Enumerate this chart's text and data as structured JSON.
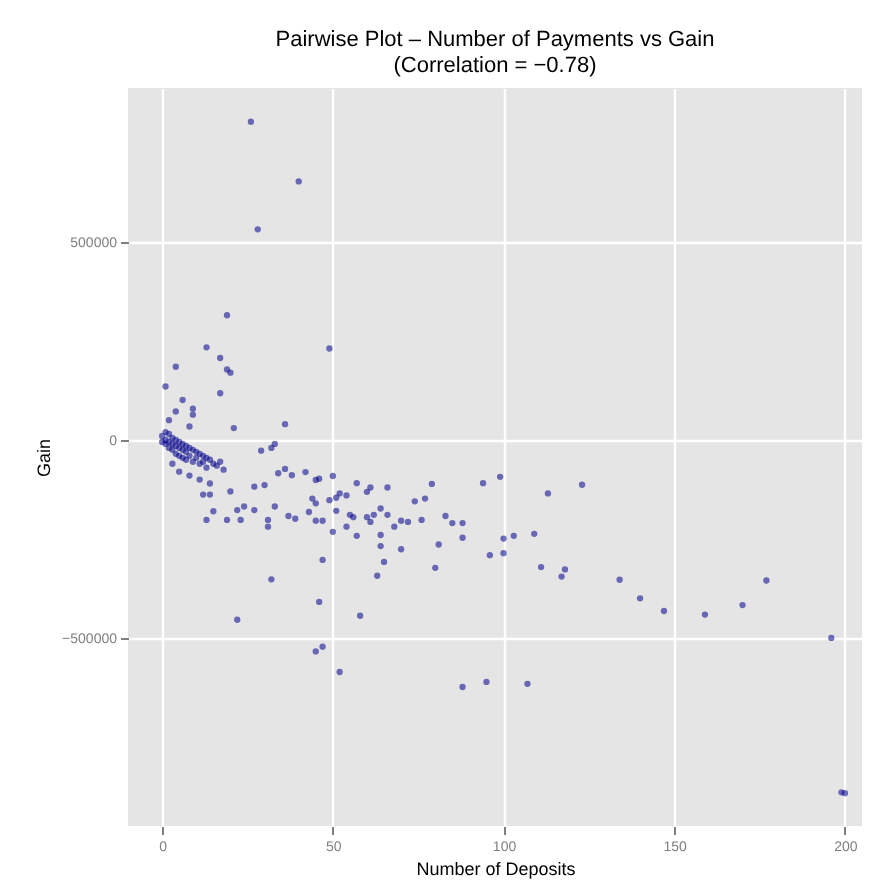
{
  "chart_data": {
    "type": "scatter",
    "title": "Pairwise Plot – Number of Payments vs Gain\n(Correlation = −0.78)",
    "xlabel": "Number of Deposits",
    "ylabel": "Gain",
    "xlim": [
      -10,
      205
    ],
    "ylim": [
      -975000,
      889000
    ],
    "xticks": [
      0,
      50,
      100,
      150,
      200
    ],
    "yticks": [
      -500000,
      0,
      500000
    ],
    "grid": true,
    "marker": "circle",
    "series": [
      {
        "color": "#00008b",
        "x": [
          26,
          40,
          28,
          19,
          49,
          13,
          17,
          19,
          20,
          4,
          1,
          17,
          6,
          9,
          9,
          4,
          36,
          21,
          8,
          2,
          0,
          0,
          1,
          1,
          1,
          2,
          2,
          2,
          3,
          3,
          3,
          4,
          4,
          4,
          5,
          5,
          5,
          6,
          6,
          6,
          7,
          7,
          7,
          8,
          8,
          9,
          9,
          10,
          10,
          11,
          11,
          12,
          12,
          13,
          13,
          14,
          15,
          16,
          17,
          18,
          3,
          5,
          8,
          11,
          14,
          29,
          32,
          33,
          50,
          79,
          66,
          61,
          60,
          45,
          42,
          46,
          38,
          36,
          34,
          30,
          57,
          52,
          51,
          49,
          44,
          45,
          54,
          77,
          74,
          64,
          66,
          55,
          62,
          60,
          76,
          72,
          70,
          68,
          61,
          56,
          54,
          50,
          47,
          45,
          43,
          51,
          39,
          37,
          31,
          31,
          33,
          24,
          27,
          23,
          19,
          13,
          14,
          12,
          15,
          22,
          20,
          27,
          57,
          64,
          64,
          70,
          81,
          88,
          88,
          83,
          80,
          65,
          63,
          47,
          32,
          46,
          58,
          22,
          45,
          47,
          52,
          88,
          94,
          99,
          113,
          123,
          100,
          103,
          109,
          96,
          100,
          111,
          117,
          118,
          134,
          140,
          147,
          159,
          170,
          177,
          196,
          95,
          107,
          199,
          200,
          85
        ],
        "values": [
          804000,
          653000,
          532000,
          315000,
          231000,
          234000,
          207000,
          178000,
          170000,
          185000,
          135000,
          118000,
          101000,
          79000,
          64000,
          72000,
          40000,
          30000,
          34000,
          50000,
          10000,
          -5000,
          20000,
          0,
          -10000,
          15000,
          -5000,
          -20000,
          5000,
          -10000,
          -25000,
          0,
          -15000,
          -35000,
          -5000,
          -20000,
          -40000,
          -10000,
          -25000,
          -45000,
          -15000,
          -30000,
          -50000,
          -20000,
          -40000,
          -25000,
          -55000,
          -30000,
          -45000,
          -35000,
          -60000,
          -40000,
          -55000,
          -45000,
          -70000,
          -50000,
          -60000,
          -65000,
          -55000,
          -75000,
          -60000,
          -80000,
          -90000,
          -100000,
          -110000,
          -27000,
          -20000,
          -10000,
          -91000,
          -111000,
          -120000,
          -120000,
          -131000,
          -101000,
          -81000,
          -98000,
          -89000,
          -73000,
          -84000,
          -114000,
          -109000,
          -135000,
          -146000,
          -152000,
          -148000,
          -160000,
          -140000,
          -148000,
          -155000,
          -173000,
          -189000,
          -189000,
          -189000,
          -195000,
          -202000,
          -207000,
          -204000,
          -219000,
          -207000,
          -195000,
          -219000,
          -232000,
          -204000,
          -204000,
          -182000,
          -179000,
          -199000,
          -192000,
          -219000,
          -202000,
          -168000,
          -168000,
          -177000,
          -202000,
          -202000,
          -202000,
          -138000,
          -138000,
          -180000,
          -177000,
          -130000,
          -118000,
          -242000,
          -240000,
          -268000,
          -276000,
          -264000,
          -247000,
          -210000,
          -192000,
          -323000,
          -308000,
          -343000,
          -303000,
          -352000,
          -409000,
          -444000,
          -454000,
          -534000,
          -522000,
          -586000,
          -624000,
          -109000,
          -93000,
          -135000,
          -113000,
          -249000,
          -242000,
          -237000,
          -291000,
          -286000,
          -321000,
          -345000,
          -327000,
          -353000,
          -400000,
          -432000,
          -441000,
          -417000,
          -355000,
          -500000,
          -611000,
          -616000,
          -890000,
          -892000,
          -210000
        ]
      }
    ]
  }
}
